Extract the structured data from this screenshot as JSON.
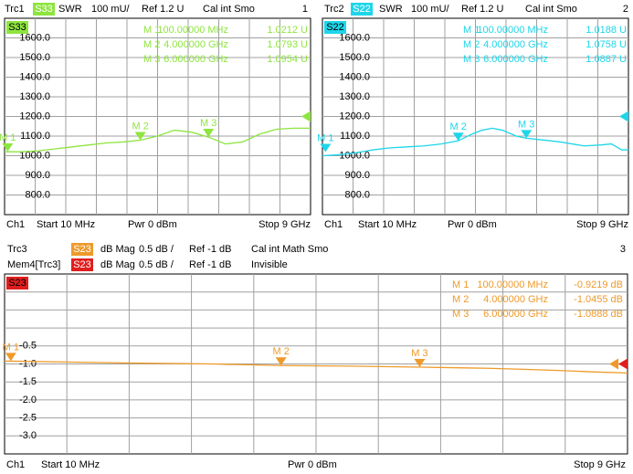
{
  "chart_data": [
    {
      "type": "line",
      "header": [
        {
          "items": [
            "Trc1",
            "S33",
            "SWR",
            "100 mU/",
            "Ref 1.2 U",
            "Cal int Smo"
          ],
          "color": "#8ee53f"
        }
      ],
      "channel": "1",
      "tag": "S33",
      "tag_color": "#8ee53f",
      "xlim": [
        0.01,
        9
      ],
      "ylim": [
        700,
        1700
      ],
      "divisions": 10,
      "grid": true,
      "ref_level": 1200,
      "yticks": [
        {
          "value": 800,
          "label": "800.0"
        },
        {
          "value": 900,
          "label": "900.0"
        },
        {
          "value": 1000,
          "label": "1000.0"
        },
        {
          "value": 1100,
          "label": "1100.0"
        },
        {
          "value": 1200,
          "label": "1200.0"
        },
        {
          "value": 1300,
          "label": "1300.0"
        },
        {
          "value": 1400,
          "label": "1400.0"
        },
        {
          "value": 1500,
          "label": "1500.0"
        },
        {
          "value": 1600,
          "label": "1600.0"
        }
      ],
      "series": [
        {
          "color": "#8ee53f",
          "x": [
            0.01,
            0.5,
            1,
            1.5,
            2,
            2.5,
            3,
            3.5,
            4,
            4.5,
            5,
            5.5,
            6,
            6.5,
            7,
            7.5,
            8,
            8.5,
            9
          ],
          "values": [
            1020,
            1020,
            1025,
            1035,
            1045,
            1055,
            1065,
            1070,
            1079,
            1100,
            1130,
            1120,
            1095,
            1060,
            1070,
            1110,
            1135,
            1140,
            1140
          ]
        }
      ],
      "markers": [
        {
          "label": "M 1",
          "freq": "100.00000 MHz",
          "readout": "1.0212 U",
          "x": 0.1,
          "y": 1021.2
        },
        {
          "label": "M 2",
          "freq": "4.000000 GHz",
          "readout": "1.0793 U",
          "x": 4,
          "y": 1079.3
        },
        {
          "label": "M 3",
          "freq": "6.000000 GHz",
          "readout": "1.0954 U",
          "x": 6,
          "y": 1095.4
        }
      ],
      "footer": [
        "Ch1",
        "Start 10 MHz",
        "Pwr 0 dBm",
        "Stop 9 GHz"
      ]
    },
    {
      "type": "line",
      "header": [
        {
          "items": [
            "Trc2",
            "S22",
            "SWR",
            "100 mU/",
            "Ref 1.2 U",
            "Cal int Smo"
          ],
          "color": "#1ed6ea"
        }
      ],
      "channel": "2",
      "tag": "S22",
      "tag_color": "#1ed6ea",
      "xlim": [
        0.01,
        9
      ],
      "ylim": [
        700,
        1700
      ],
      "divisions": 10,
      "grid": true,
      "ref_level": 1200,
      "yticks": [
        {
          "value": 800,
          "label": "800.0"
        },
        {
          "value": 900,
          "label": "900.0"
        },
        {
          "value": 1000,
          "label": "1000.0"
        },
        {
          "value": 1100,
          "label": "1100.0"
        },
        {
          "value": 1200,
          "label": "1200.0"
        },
        {
          "value": 1300,
          "label": "1300.0"
        },
        {
          "value": 1400,
          "label": "1400.0"
        },
        {
          "value": 1500,
          "label": "1500.0"
        },
        {
          "value": 1600,
          "label": "1600.0"
        }
      ],
      "series": [
        {
          "color": "#1ed6ea",
          "x": [
            0.01,
            0.5,
            1,
            1.5,
            2,
            2.5,
            3,
            3.5,
            4,
            4.4,
            4.7,
            5,
            5.3,
            5.7,
            6,
            6.5,
            7,
            7.7,
            8.2,
            8.5,
            8.8,
            9
          ],
          "values": [
            1000,
            1005,
            1015,
            1030,
            1040,
            1045,
            1050,
            1060,
            1076,
            1110,
            1130,
            1140,
            1130,
            1100,
            1089,
            1080,
            1070,
            1050,
            1055,
            1060,
            1030,
            1030
          ]
        }
      ],
      "markers": [
        {
          "label": "M 1",
          "freq": "100.00000 MHz",
          "readout": "1.0188 U",
          "x": 0.1,
          "y": 1018.8
        },
        {
          "label": "M 2",
          "freq": "4.000000 GHz",
          "readout": "1.0758 U",
          "x": 4,
          "y": 1075.8
        },
        {
          "label": "M 3",
          "freq": "6.000000 GHz",
          "readout": "1.0887 U",
          "x": 6,
          "y": 1088.7
        }
      ],
      "footer": [
        "Ch1",
        "Start 10 MHz",
        "Pwr 0 dBm",
        "Stop 9 GHz"
      ]
    },
    {
      "type": "line",
      "header": [
        {
          "items": [
            "Trc3",
            "S23",
            "dB Mag",
            "0.5 dB /",
            "Ref -1 dB",
            "Cal int Math Smo"
          ],
          "color": "#ee9a2a"
        },
        {
          "items": [
            "Mem4[Trc3]",
            "S23",
            "dB Mag",
            "0.5 dB /",
            "Ref -1 dB",
            "Invisible"
          ],
          "color": "#e01e1e"
        }
      ],
      "channel": "3",
      "tag": "S23",
      "tag_color": "#e01e1e",
      "xlim": [
        0.01,
        9
      ],
      "ylim": [
        -3.5,
        1.5
      ],
      "divisions": 10,
      "grid": true,
      "ref_level": -1,
      "yticks": [
        {
          "value": -3,
          "label": "-3.0"
        },
        -2.5,
        {
          "value": -2,
          "label": "-2.0"
        },
        -1.5,
        {
          "value": -1,
          "label": "-1.0"
        },
        -0.5
      ],
      "series": [
        {
          "color": "#ee9a2a",
          "x": [
            0.01,
            0.1,
            1,
            2,
            3,
            4,
            5,
            6,
            7,
            7.5,
            8,
            8.5,
            9
          ],
          "values": [
            -0.92,
            -0.922,
            -0.95,
            -0.98,
            -1.0,
            -1.045,
            -1.06,
            -1.089,
            -1.12,
            -1.15,
            -1.18,
            -1.22,
            -1.25
          ]
        }
      ],
      "markers": [
        {
          "label": "M 1",
          "freq": "100.00000 MHz",
          "readout": "-0.9219 dB",
          "x": 0.1,
          "y": -0.9219
        },
        {
          "label": "M 2",
          "freq": "4.000000 GHz",
          "readout": "-1.0455 dB",
          "x": 4,
          "y": -1.0455
        },
        {
          "label": "M 3",
          "freq": "6.000000 GHz",
          "readout": "-1.0888 dB",
          "x": 6,
          "y": -1.0888
        }
      ],
      "footer": [
        "Ch1",
        "Start 10 MHz",
        "Pwr 0 dBm",
        "Stop 9 GHz"
      ]
    }
  ]
}
